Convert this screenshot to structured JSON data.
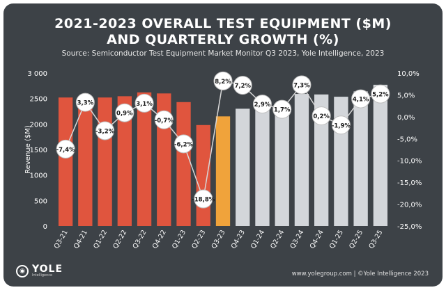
{
  "header": {
    "title_line1": "2021-2023 OVERALL TEST EQUIPMENT ($M)",
    "title_line2": "AND QUARTERLY GROWTH (%)",
    "source": "Source: Semiconductor Test Equipment Market Monitor Q3 2023, Yole Intelligence, 2023"
  },
  "logo": {
    "name": "YOLE",
    "tagline": "Intelligence"
  },
  "footer": {
    "text": "www.yolegroup.com | ©Yole Intelligence 2023"
  },
  "colors": {
    "background": "#3d4247",
    "bar_historical": "#e0553e",
    "bar_current": "#f0a33b",
    "bar_forecast": "#d3d6da",
    "growth_line": "#d8d8d8",
    "label_fill": "#ffffff",
    "label_text": "#1a1a1a"
  },
  "chart_data": {
    "type": "bar",
    "categories": [
      "Q3-21",
      "Q4-21",
      "Q1-22",
      "Q2-22",
      "Q3-22",
      "Q4-22",
      "Q1-23",
      "Q2-23",
      "Q3-23",
      "Q4-23",
      "Q1-24",
      "Q2-24",
      "Q3-24",
      "Q4-24",
      "Q1-25",
      "Q2-25",
      "Q3-25"
    ],
    "series": [
      {
        "axis": "left",
        "kind": "bar",
        "values": [
          2520,
          2500,
          2520,
          2545,
          2620,
          2600,
          2430,
          1980,
          2150,
          2300,
          2370,
          2410,
          2590,
          2580,
          2535,
          2640,
          2770
        ],
        "bar_segment": [
          "historical",
          "historical",
          "historical",
          "historical",
          "historical",
          "historical",
          "historical",
          "historical",
          "current",
          "forecast",
          "forecast",
          "forecast",
          "forecast",
          "forecast",
          "forecast",
          "forecast",
          "forecast"
        ]
      },
      {
        "axis": "right",
        "kind": "line",
        "values": [
          -7.4,
          3.3,
          -3.2,
          0.9,
          3.1,
          -0.7,
          -6.2,
          -18.8,
          8.2,
          7.2,
          2.9,
          1.7,
          7.3,
          0.2,
          -1.9,
          4.1,
          5.2
        ],
        "labels": [
          "-7,4%",
          "3,3%",
          "-3,2%",
          "0,9%",
          "3,1%",
          "-0,7%",
          "-6,2%",
          "-18,8%",
          "8,2%",
          "7,2%",
          "2,9%",
          "1,7%",
          "7,3%",
          "0,2%",
          "-1,9%",
          "4,1%",
          "5,2%"
        ]
      }
    ],
    "ylabel": "Revenue ($M)",
    "ylim": [
      0,
      3000
    ],
    "yticks": [
      0,
      500,
      1000,
      1500,
      2000,
      2500,
      3000
    ],
    "ytick_labels": [
      "0",
      "500",
      "1000",
      "1500",
      "2000",
      "2500",
      "3 000"
    ],
    "y2lim": [
      -25,
      10
    ],
    "y2ticks": [
      -25,
      -20,
      -15,
      -10,
      -5,
      0,
      5,
      10
    ],
    "y2tick_labels": [
      "-25,0%",
      "-20,0%",
      "-15,0%",
      "-10,0%",
      "-5,0%",
      "0,0%",
      "5,0%",
      "10,0%"
    ],
    "grid": false,
    "legend": "none"
  }
}
